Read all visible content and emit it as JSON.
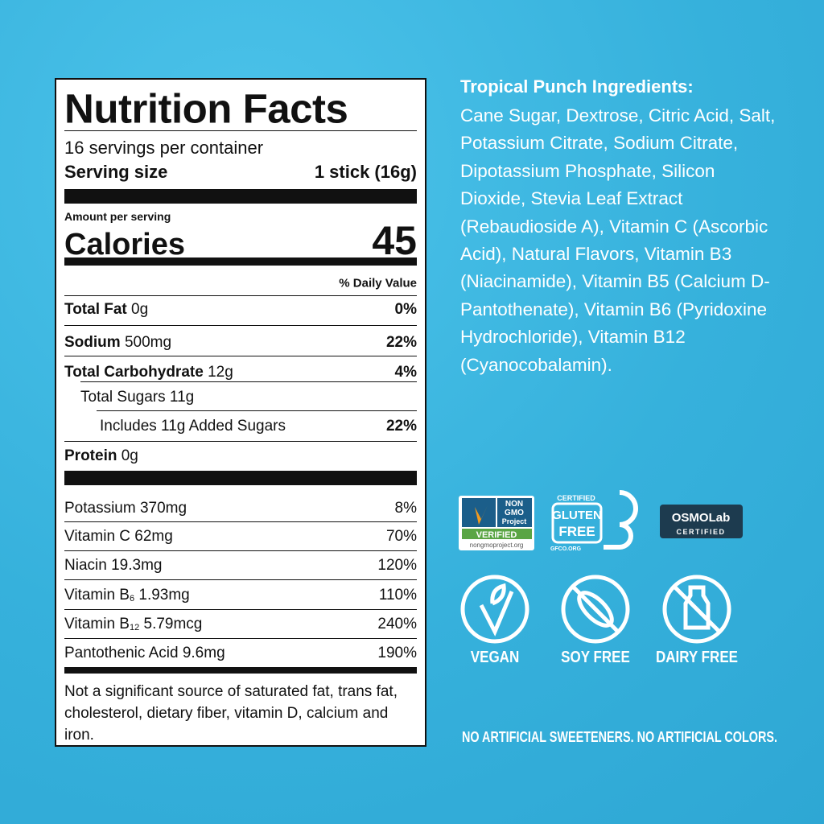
{
  "nutrition_facts": {
    "title": "Nutrition Facts",
    "servings": "16 servings per container",
    "serving_size_label": "Serving size",
    "serving_size": "1 stick (16g)",
    "amount_per_serving": "Amount per serving",
    "calories_label": "Calories",
    "calories": "45",
    "daily_value_header": "% Daily Value",
    "nutrients": [
      {
        "name": "Total Fat",
        "amount": "0g",
        "daily_value": "0%"
      },
      {
        "name": "Sodium",
        "amount": "500mg",
        "daily_value": "22%"
      },
      {
        "name": "Total Carbohydrate",
        "amount": "12g",
        "daily_value": "4%"
      },
      {
        "name": "Total Sugars",
        "amount": "11g"
      },
      {
        "name": "Includes 11g Added Sugars",
        "daily_value": "22%"
      },
      {
        "name": "Protein",
        "amount": "0g"
      }
    ],
    "vitamins_minerals": [
      {
        "name": "Potassium",
        "amount": "370mg",
        "daily_value": "8%"
      },
      {
        "name": "Vitamin C",
        "amount": "62mg",
        "daily_value": "70%"
      },
      {
        "name": "Niacin",
        "amount": "19.3mg",
        "daily_value": "120%"
      },
      {
        "name": "Vitamin B",
        "subscript": "6",
        "amount": "1.93mg",
        "daily_value": "110%"
      },
      {
        "name": "Vitamin B",
        "subscript": "12",
        "amount": "5.79mcg",
        "daily_value": "240%"
      },
      {
        "name": "Pantothenic Acid",
        "amount": "9.6mg",
        "daily_value": "190%"
      }
    ],
    "footnote": "Not a significant source of saturated fat, trans fat, cholesterol, dietary fiber, vitamin D, calcium and iron."
  },
  "ingredients": {
    "title": "Tropical Punch Ingredients:",
    "text": "Cane Sugar, Dextrose, Citric Acid, Salt, Potassium Citrate, Sodium Citrate, Dipotassium Phosphate, Silicon Dioxide, Stevia Leaf Extract (Rebaudioside A), Vitamin C (Ascorbic Acid), Natural Flavors, Vitamin B3 (Niacinamide), Vitamin B5 (Calcium D-Pantothenate), Vitamin B6 (Pyridoxine Hydrochloride), Vitamin B12 (Cyanocobalamin)."
  },
  "certifications": {
    "non_gmo": {
      "name": [
        "NON",
        "GMO",
        "Project"
      ],
      "status": "VERIFIED",
      "url": "nongmoproject.org"
    },
    "gluten_free": {
      "certified": "CERTIFIED",
      "name": [
        "GLUTEN",
        "FREE"
      ],
      "url": "GFCO.ORG"
    },
    "osmolab": {
      "name": "OSMOLab",
      "status": "CERTIFIED"
    }
  },
  "icons": [
    "VEGAN",
    "SOY FREE",
    "DAIRY FREE"
  ],
  "tagline": "NO ARTIFICIAL SWEETENERS. NO ARTIFICIAL COLORS."
}
